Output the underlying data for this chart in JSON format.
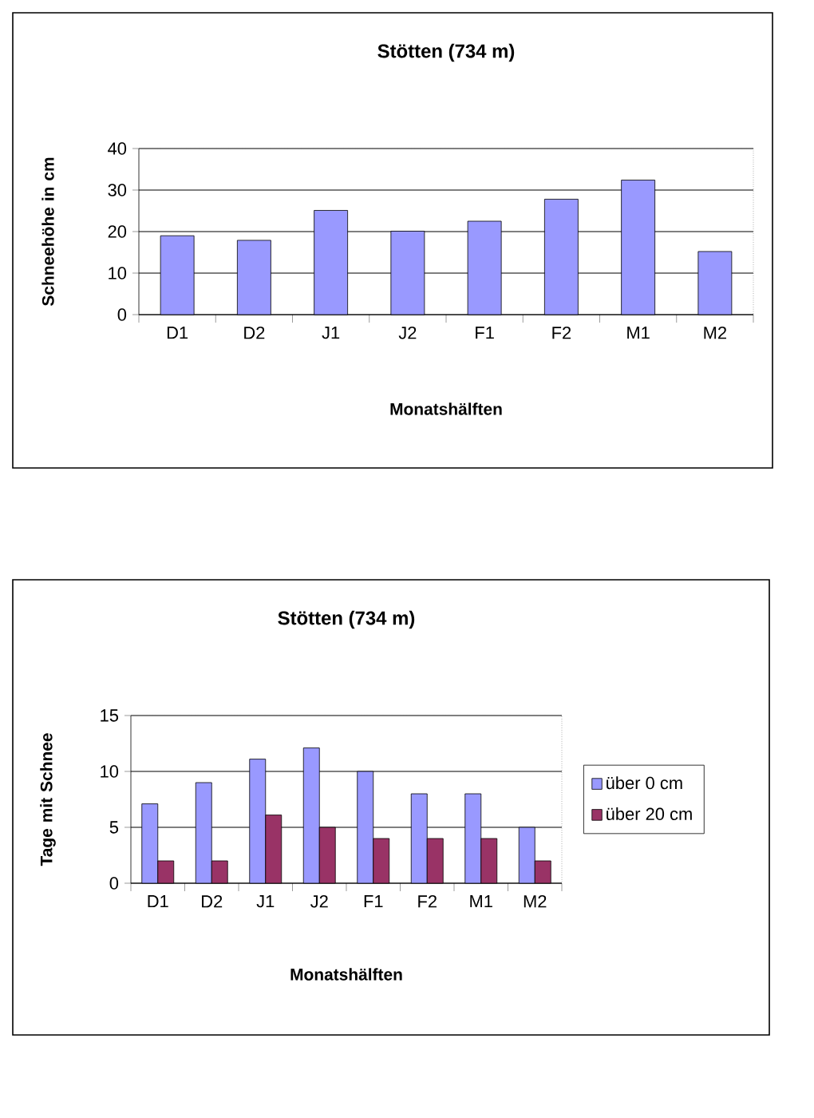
{
  "chart_data": [
    {
      "type": "bar",
      "title": "Stötten (734 m)",
      "xlabel": "Monatshälften",
      "ylabel": "Schneehöhe in cm",
      "categories": [
        "D1",
        "D2",
        "J1",
        "J2",
        "F1",
        "F2",
        "M1",
        "M2"
      ],
      "values": [
        19,
        17.9,
        25.1,
        20.1,
        22.5,
        27.8,
        32.4,
        15.2
      ],
      "color": "#9999ff",
      "ylim": [
        0,
        40
      ],
      "yticks": [
        0,
        10,
        20,
        30,
        40
      ],
      "grid": "y",
      "legend": false
    },
    {
      "type": "bar",
      "title": "Stötten (734 m)",
      "xlabel": "Monatshälften",
      "ylabel": "Tage mit Schnee",
      "categories": [
        "D1",
        "D2",
        "J1",
        "J2",
        "F1",
        "F2",
        "M1",
        "M2"
      ],
      "series": [
        {
          "name": "über 0 cm",
          "color": "#9999ff",
          "values": [
            7.1,
            9,
            11.1,
            12.1,
            10,
            8,
            8,
            5
          ]
        },
        {
          "name": "über 20 cm",
          "color": "#993366",
          "values": [
            2,
            2,
            6.1,
            5,
            4,
            4,
            4,
            2
          ]
        }
      ],
      "ylim": [
        0,
        15
      ],
      "yticks": [
        0,
        5,
        10,
        15
      ],
      "grid": "y",
      "legend": "right"
    }
  ]
}
